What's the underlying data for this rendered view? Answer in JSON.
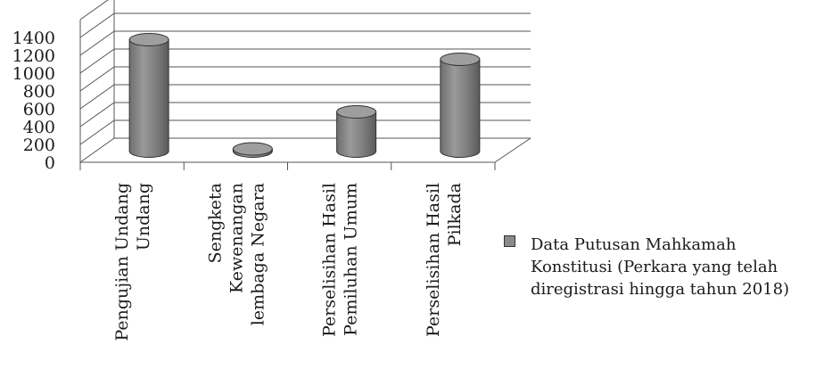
{
  "chart_data": {
    "type": "bar",
    "style": "3d-cylinder",
    "categories": [
      [
        "Pengujian Undang",
        "Undang"
      ],
      [
        "Sengketa",
        "Kewenangan",
        "lembaga Negara"
      ],
      [
        "Perselisihan Hasil",
        "Pemiluhan Umum"
      ],
      [
        "Perselisihan Hasil",
        "Pilkada"
      ]
    ],
    "series": [
      {
        "name": "Data Putusan Mahkamah Konstitusi (Perkara yang telah diregistrasi hingga tahun 2018)",
        "values": [
          1250,
          25,
          440,
          1030
        ],
        "color": "#8c8c8c"
      }
    ],
    "y_ticks": [
      "0",
      "200",
      "400",
      "600",
      "800",
      "1000",
      "1200",
      "1400"
    ],
    "ylim": [
      0,
      1400
    ],
    "grid": true,
    "legend_position": "right",
    "title": "",
    "xlabel": "",
    "ylabel": ""
  },
  "legend": {
    "lines": [
      "Data Putusan Mahkamah",
      "Konstitusi (Perkara yang telah",
      "diregistrasi hingga tahun 2018)"
    ]
  }
}
